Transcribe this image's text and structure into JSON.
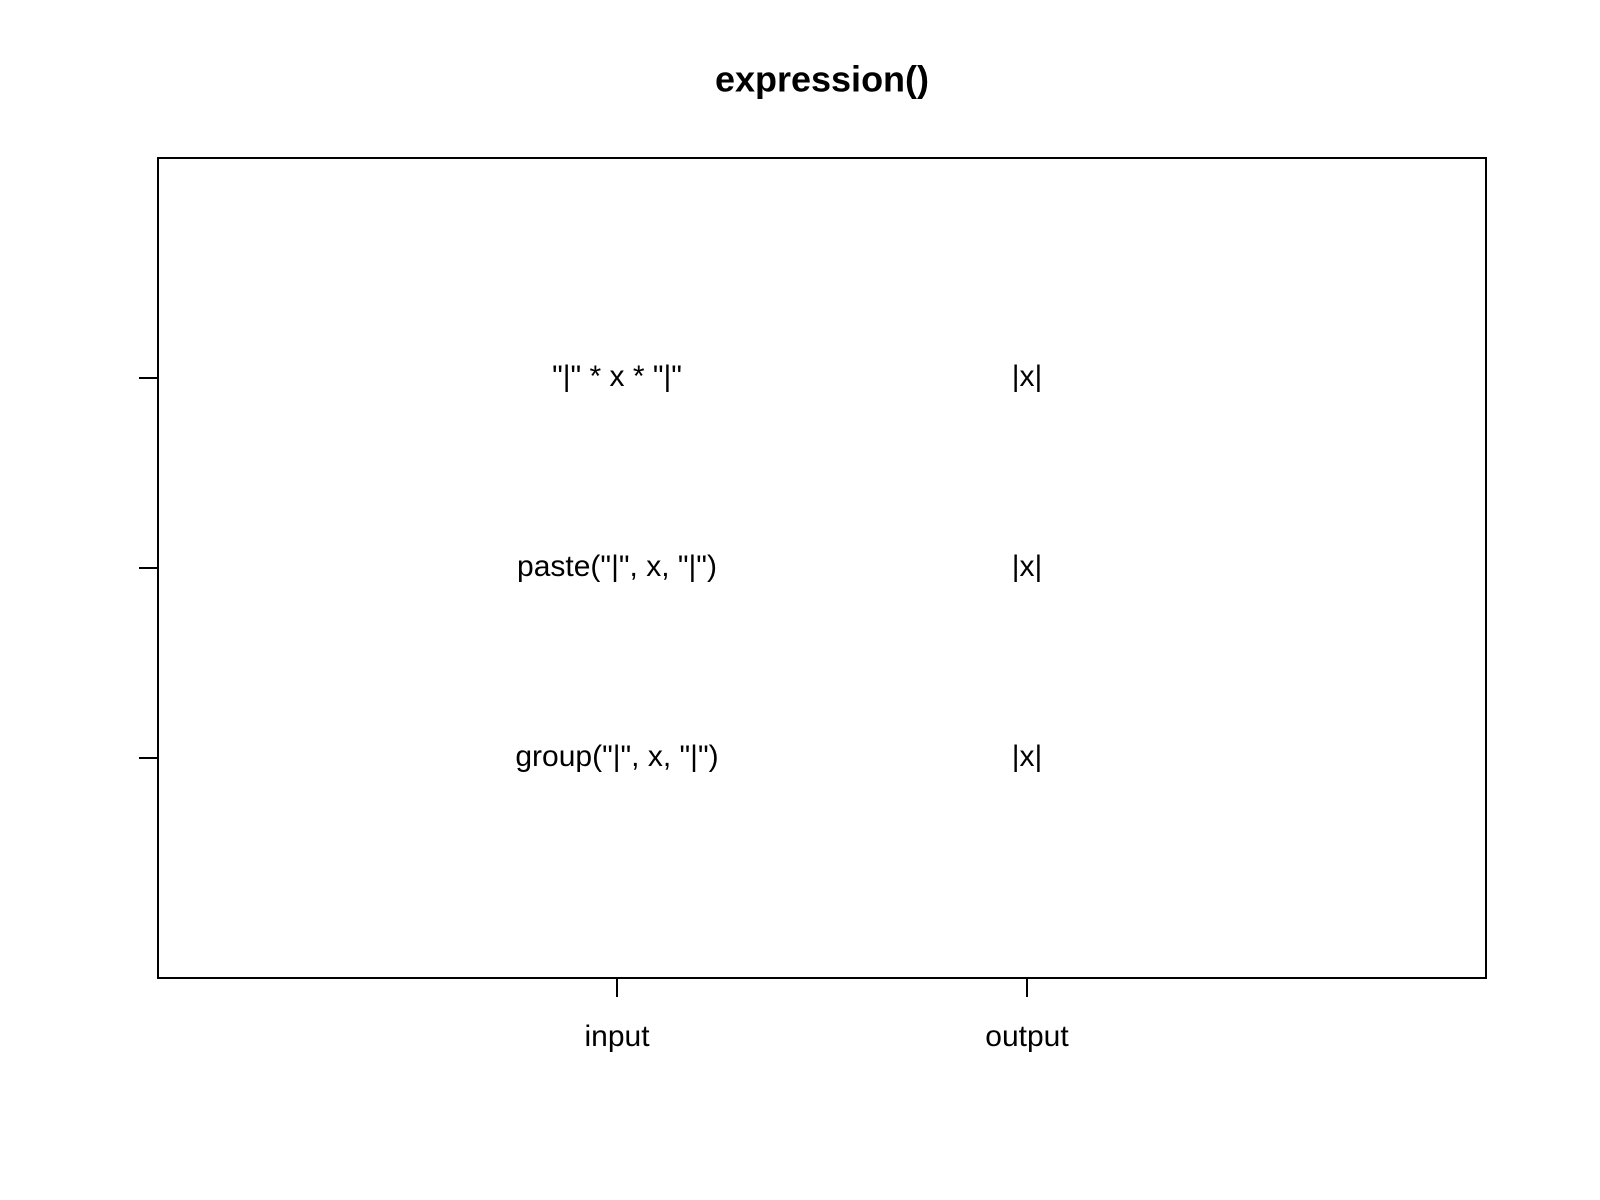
{
  "title": "expression()",
  "columns": [
    "input",
    "output"
  ],
  "rows": [
    {
      "input": "\"|\" * x * \"|\"",
      "output": "|x|"
    },
    {
      "input": "paste(\"|\", x, \"|\")",
      "output": "|x|"
    },
    {
      "input": "group(\"|\", x, \"|\")",
      "output": "|x|"
    }
  ]
}
